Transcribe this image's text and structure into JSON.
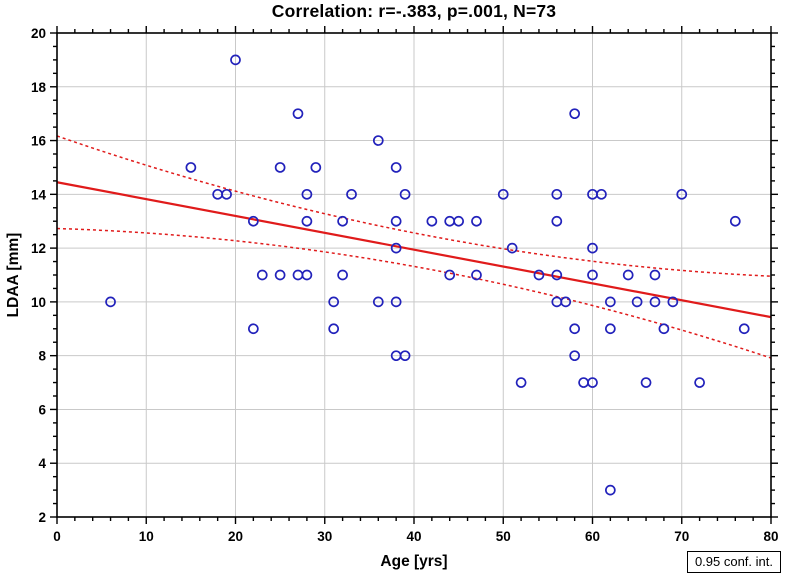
{
  "title": "Correlation: r=-.383, p=.001, N=73",
  "legend": {
    "label": "0.95 conf. int."
  },
  "colors": {
    "marker": "#2222bb",
    "regression": "#e01b1b",
    "grid": "#c9c9c9",
    "frame": "#000000"
  },
  "chart_data": {
    "type": "scatter",
    "title": "Correlation: r=-.383, p=.001, N=73",
    "xlabel": "Age [yrs]",
    "ylabel": "LDAA [mm]",
    "xlim": [
      0,
      80
    ],
    "ylim": [
      2,
      20
    ],
    "x_major_step": 10,
    "x_minor_step": 2,
    "y_major_step": 2,
    "y_minor_step": 0.5,
    "grid": true,
    "legend_position": "bottom-right",
    "stats": {
      "r": -0.383,
      "p": 0.001,
      "n": 73
    },
    "points": [
      [
        6,
        10
      ],
      [
        15,
        15
      ],
      [
        18,
        14
      ],
      [
        19,
        14
      ],
      [
        20,
        19
      ],
      [
        22,
        13
      ],
      [
        22,
        9
      ],
      [
        23,
        11
      ],
      [
        25,
        15
      ],
      [
        25,
        11
      ],
      [
        27,
        17
      ],
      [
        27,
        11
      ],
      [
        28,
        14
      ],
      [
        28,
        13
      ],
      [
        28,
        11
      ],
      [
        29,
        15
      ],
      [
        31,
        10
      ],
      [
        31,
        9
      ],
      [
        32,
        13
      ],
      [
        32,
        11
      ],
      [
        33,
        14
      ],
      [
        36,
        16
      ],
      [
        36,
        10
      ],
      [
        38,
        15
      ],
      [
        38,
        13
      ],
      [
        38,
        12
      ],
      [
        38,
        10
      ],
      [
        38,
        8
      ],
      [
        39,
        14
      ],
      [
        39,
        8
      ],
      [
        42,
        13
      ],
      [
        44,
        13
      ],
      [
        44,
        11
      ],
      [
        45,
        13
      ],
      [
        47,
        13
      ],
      [
        47,
        11
      ],
      [
        50,
        14
      ],
      [
        51,
        12
      ],
      [
        52,
        7
      ],
      [
        54,
        11
      ],
      [
        56,
        14
      ],
      [
        56,
        13
      ],
      [
        56,
        11
      ],
      [
        56,
        10
      ],
      [
        57,
        10
      ],
      [
        58,
        17
      ],
      [
        58,
        9
      ],
      [
        58,
        8
      ],
      [
        59,
        7
      ],
      [
        60,
        14
      ],
      [
        60,
        12
      ],
      [
        60,
        11
      ],
      [
        60,
        7
      ],
      [
        61,
        14
      ],
      [
        62,
        10
      ],
      [
        62,
        9
      ],
      [
        62,
        3
      ],
      [
        64,
        11
      ],
      [
        65,
        10
      ],
      [
        66,
        7
      ],
      [
        67,
        11
      ],
      [
        67,
        10
      ],
      [
        68,
        9
      ],
      [
        69,
        10
      ],
      [
        70,
        14
      ],
      [
        72,
        7
      ],
      [
        76,
        13
      ],
      [
        77,
        9
      ]
    ],
    "regression": {
      "intercept": 14.45,
      "slope": -0.0627
    },
    "conf_band": {
      "level": 0.95,
      "mean_x": 42,
      "halfwidth_at_mean": 0.62,
      "curvature": 0.000624
    }
  }
}
